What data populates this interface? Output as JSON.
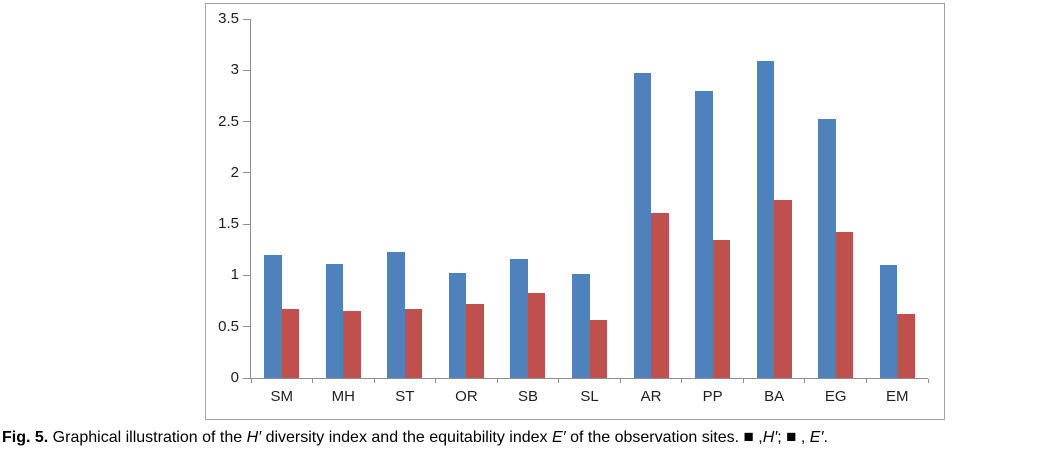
{
  "figure": {
    "caption": {
      "marker_color": "#000000",
      "segments": [
        {
          "text": "Fig. 5.",
          "style": "bold"
        },
        {
          "text": " Graphical illustration of the ",
          "style": "normal"
        },
        {
          "text": "H′",
          "style": "italic"
        },
        {
          "text": " diversity index and the equitability index ",
          "style": "normal"
        },
        {
          "text": "E′",
          "style": "italic"
        },
        {
          "text": " of the observation sites. ",
          "style": "normal"
        },
        {
          "text": "■",
          "style": "marker"
        },
        {
          "text": " ,",
          "style": "normal"
        },
        {
          "text": "H′",
          "style": "italic"
        },
        {
          "text": "; ",
          "style": "normal"
        },
        {
          "text": "■",
          "style": "marker"
        },
        {
          "text": " , ",
          "style": "normal"
        },
        {
          "text": "E′",
          "style": "italic"
        },
        {
          "text": ".",
          "style": "normal"
        }
      ]
    }
  },
  "chart_data": {
    "type": "bar",
    "title": "",
    "xlabel": "",
    "ylabel": "",
    "categories": [
      "SM",
      "MH",
      "ST",
      "OR",
      "SB",
      "SL",
      "AR",
      "PP",
      "BA",
      "EG",
      "EM"
    ],
    "series": [
      {
        "name": "H′",
        "color": "#4f81bd",
        "values": [
          1.2,
          1.11,
          1.23,
          1.02,
          1.16,
          1.01,
          2.97,
          2.8,
          3.09,
          2.53,
          1.1
        ]
      },
      {
        "name": "E′",
        "color": "#c0504d",
        "values": [
          0.67,
          0.65,
          0.67,
          0.72,
          0.83,
          0.57,
          1.61,
          1.35,
          1.74,
          1.42,
          0.62
        ]
      }
    ],
    "ylim": [
      0,
      3.5
    ],
    "y_ticks": [
      0,
      0.5,
      1,
      1.5,
      2,
      2.5,
      3,
      3.5
    ],
    "grid": false,
    "legend_position": "in-caption"
  }
}
